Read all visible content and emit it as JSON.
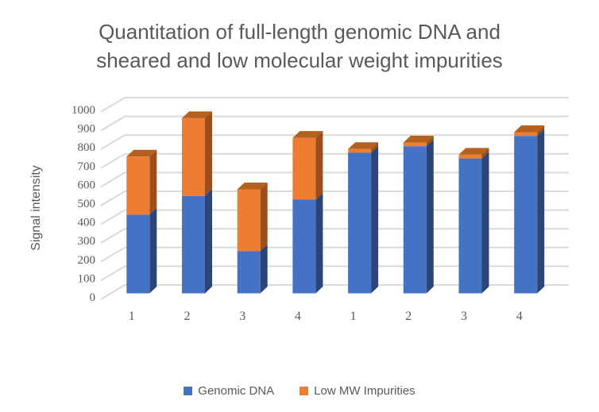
{
  "title": {
    "line1": "Quantitation of full-length genomic DNA and",
    "line2": "sheared and low molecular weight impurities"
  },
  "y_axis": {
    "label": "Signal intensity",
    "ticks": [
      "0",
      "100",
      "200",
      "300",
      "400",
      "500",
      "600",
      "700",
      "800",
      "900",
      "1000"
    ]
  },
  "x_axis": {
    "categories": [
      "1",
      "2",
      "3",
      "4",
      "1",
      "2",
      "3",
      "4"
    ]
  },
  "legend": {
    "items": [
      {
        "label": "Genomic DNA",
        "color": "#4472C4"
      },
      {
        "label": "Low MW Impurities",
        "color": "#ED7D31"
      }
    ]
  },
  "colors": {
    "background": "#FFFFFF",
    "title_text": "#595959",
    "axis_text": "#595959",
    "gridline": "#D9D9D9",
    "blue_front": "#4472C4",
    "blue_side": "#2B4577",
    "orange_front": "#ED7D31",
    "orange_side": "#9C4E1C",
    "orange_top": "#B4611F"
  },
  "chart_data": {
    "type": "bar",
    "subtype": "3d-stacked-column",
    "title": "Quantitation of full-length genomic DNA and sheared and low molecular weight impurities",
    "xlabel": "",
    "ylabel": "Signal intensity",
    "ylim": [
      0,
      1000
    ],
    "ytick_step": 100,
    "grid": true,
    "legend_position": "bottom",
    "categories": [
      "1",
      "2",
      "3",
      "4",
      "1",
      "2",
      "3",
      "4"
    ],
    "series": [
      {
        "name": "Genomic DNA",
        "color": "#4472C4",
        "values": [
          420,
          520,
          225,
          500,
          750,
          785,
          720,
          840
        ]
      },
      {
        "name": "Low MW Impurities",
        "color": "#ED7D31",
        "values": [
          310,
          415,
          330,
          330,
          20,
          20,
          20,
          20
        ]
      }
    ],
    "stacked_totals": [
      730,
      935,
      555,
      830,
      770,
      805,
      740,
      860
    ]
  }
}
